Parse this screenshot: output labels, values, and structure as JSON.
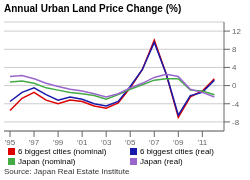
{
  "chart_data": {
    "type": "line",
    "title": "Annual Urban Land Price Change (%)",
    "annotations": [
      "Source: Japan Real Estate Institute"
    ],
    "x": [
      1995,
      1996,
      1997,
      1998,
      1999,
      2000,
      2001,
      2002,
      2003,
      2004,
      2005,
      2006,
      2007,
      2008,
      2009,
      2010,
      2011,
      2012
    ],
    "series": [
      {
        "name": "6 biggest cities (nominal)",
        "color": "#dd0000",
        "values": [
          -5.5,
          -2.8,
          -1.5,
          -3.2,
          -4.0,
          -3.2,
          -3.5,
          -4.5,
          -5.0,
          -3.8,
          -0.5,
          3.5,
          10.0,
          2.5,
          -7.0,
          -2.5,
          -1.2,
          1.5
        ]
      },
      {
        "name": "6 biggest cities (real)",
        "color": "#1a1aaa",
        "values": [
          -3.5,
          -1.5,
          -0.5,
          -2.0,
          -3.2,
          -2.5,
          -3.0,
          -4.0,
          -4.5,
          -3.5,
          -0.2,
          3.5,
          9.5,
          2.5,
          -6.5,
          -2.2,
          -1.5,
          1.2
        ]
      },
      {
        "name": "Japan (nominal)",
        "color": "#44aa44",
        "values": [
          0.8,
          1.0,
          0.5,
          -0.5,
          -1.0,
          -1.5,
          -1.8,
          -2.2,
          -3.0,
          -2.0,
          -0.8,
          0.2,
          1.2,
          1.5,
          1.5,
          -1.0,
          -1.2,
          -2.0
        ]
      },
      {
        "name": "Japan (real)",
        "color": "#9966cc",
        "values": [
          2.0,
          2.2,
          1.5,
          0.5,
          -0.2,
          -0.8,
          -1.2,
          -1.8,
          -2.5,
          -1.8,
          -0.5,
          0.5,
          1.8,
          2.5,
          2.0,
          -0.8,
          -1.5,
          -2.5
        ]
      }
    ],
    "xlim": [
      1994.5,
      2012.8
    ],
    "xticks": [
      {
        "value": 1995,
        "label": "'95"
      },
      {
        "value": 1997,
        "label": "'97"
      },
      {
        "value": 1999,
        "label": "'99"
      },
      {
        "value": 2001,
        "label": "'01"
      },
      {
        "value": 2003,
        "label": "'03"
      },
      {
        "value": 2005,
        "label": "'05"
      },
      {
        "value": 2007,
        "label": "'07"
      },
      {
        "value": 2009,
        "label": "'09"
      },
      {
        "value": 2011,
        "label": "'11"
      }
    ],
    "ylim": [
      -10,
      14
    ],
    "yticks": [
      -8,
      -4,
      0,
      4,
      8,
      12
    ],
    "grid": true,
    "legend": "bottom"
  }
}
